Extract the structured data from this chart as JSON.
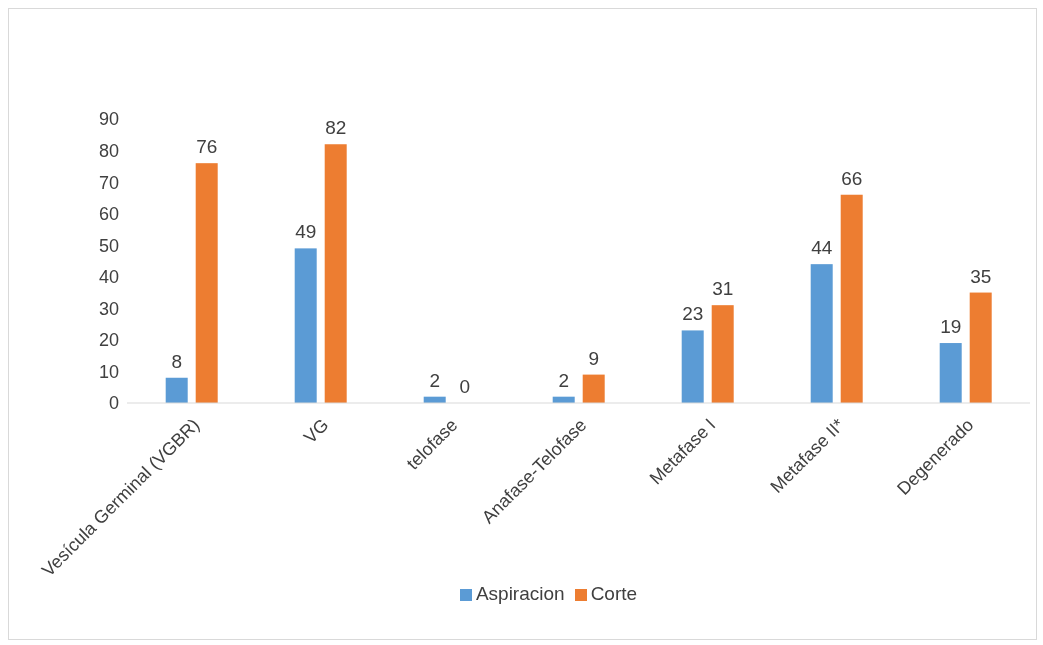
{
  "chart_data": {
    "type": "bar",
    "categories": [
      "Vesícula Germinal (VGBR)",
      "VG",
      "telofase",
      "Anafase-Telofase",
      "Metafase I",
      "Metafase II*",
      "Degenerado"
    ],
    "series": [
      {
        "name": "Aspiracion",
        "color": "#5b9bd5",
        "values": [
          8,
          49,
          2,
          2,
          23,
          44,
          19
        ]
      },
      {
        "name": "Corte",
        "color": "#ed7d31",
        "values": [
          76,
          82,
          0,
          9,
          31,
          66,
          35
        ]
      }
    ],
    "ylim": [
      0,
      90
    ],
    "yticks": [
      0,
      10,
      20,
      30,
      40,
      50,
      60,
      70,
      80,
      90
    ],
    "grid": false,
    "data_labels": true,
    "legend": "bottom"
  }
}
